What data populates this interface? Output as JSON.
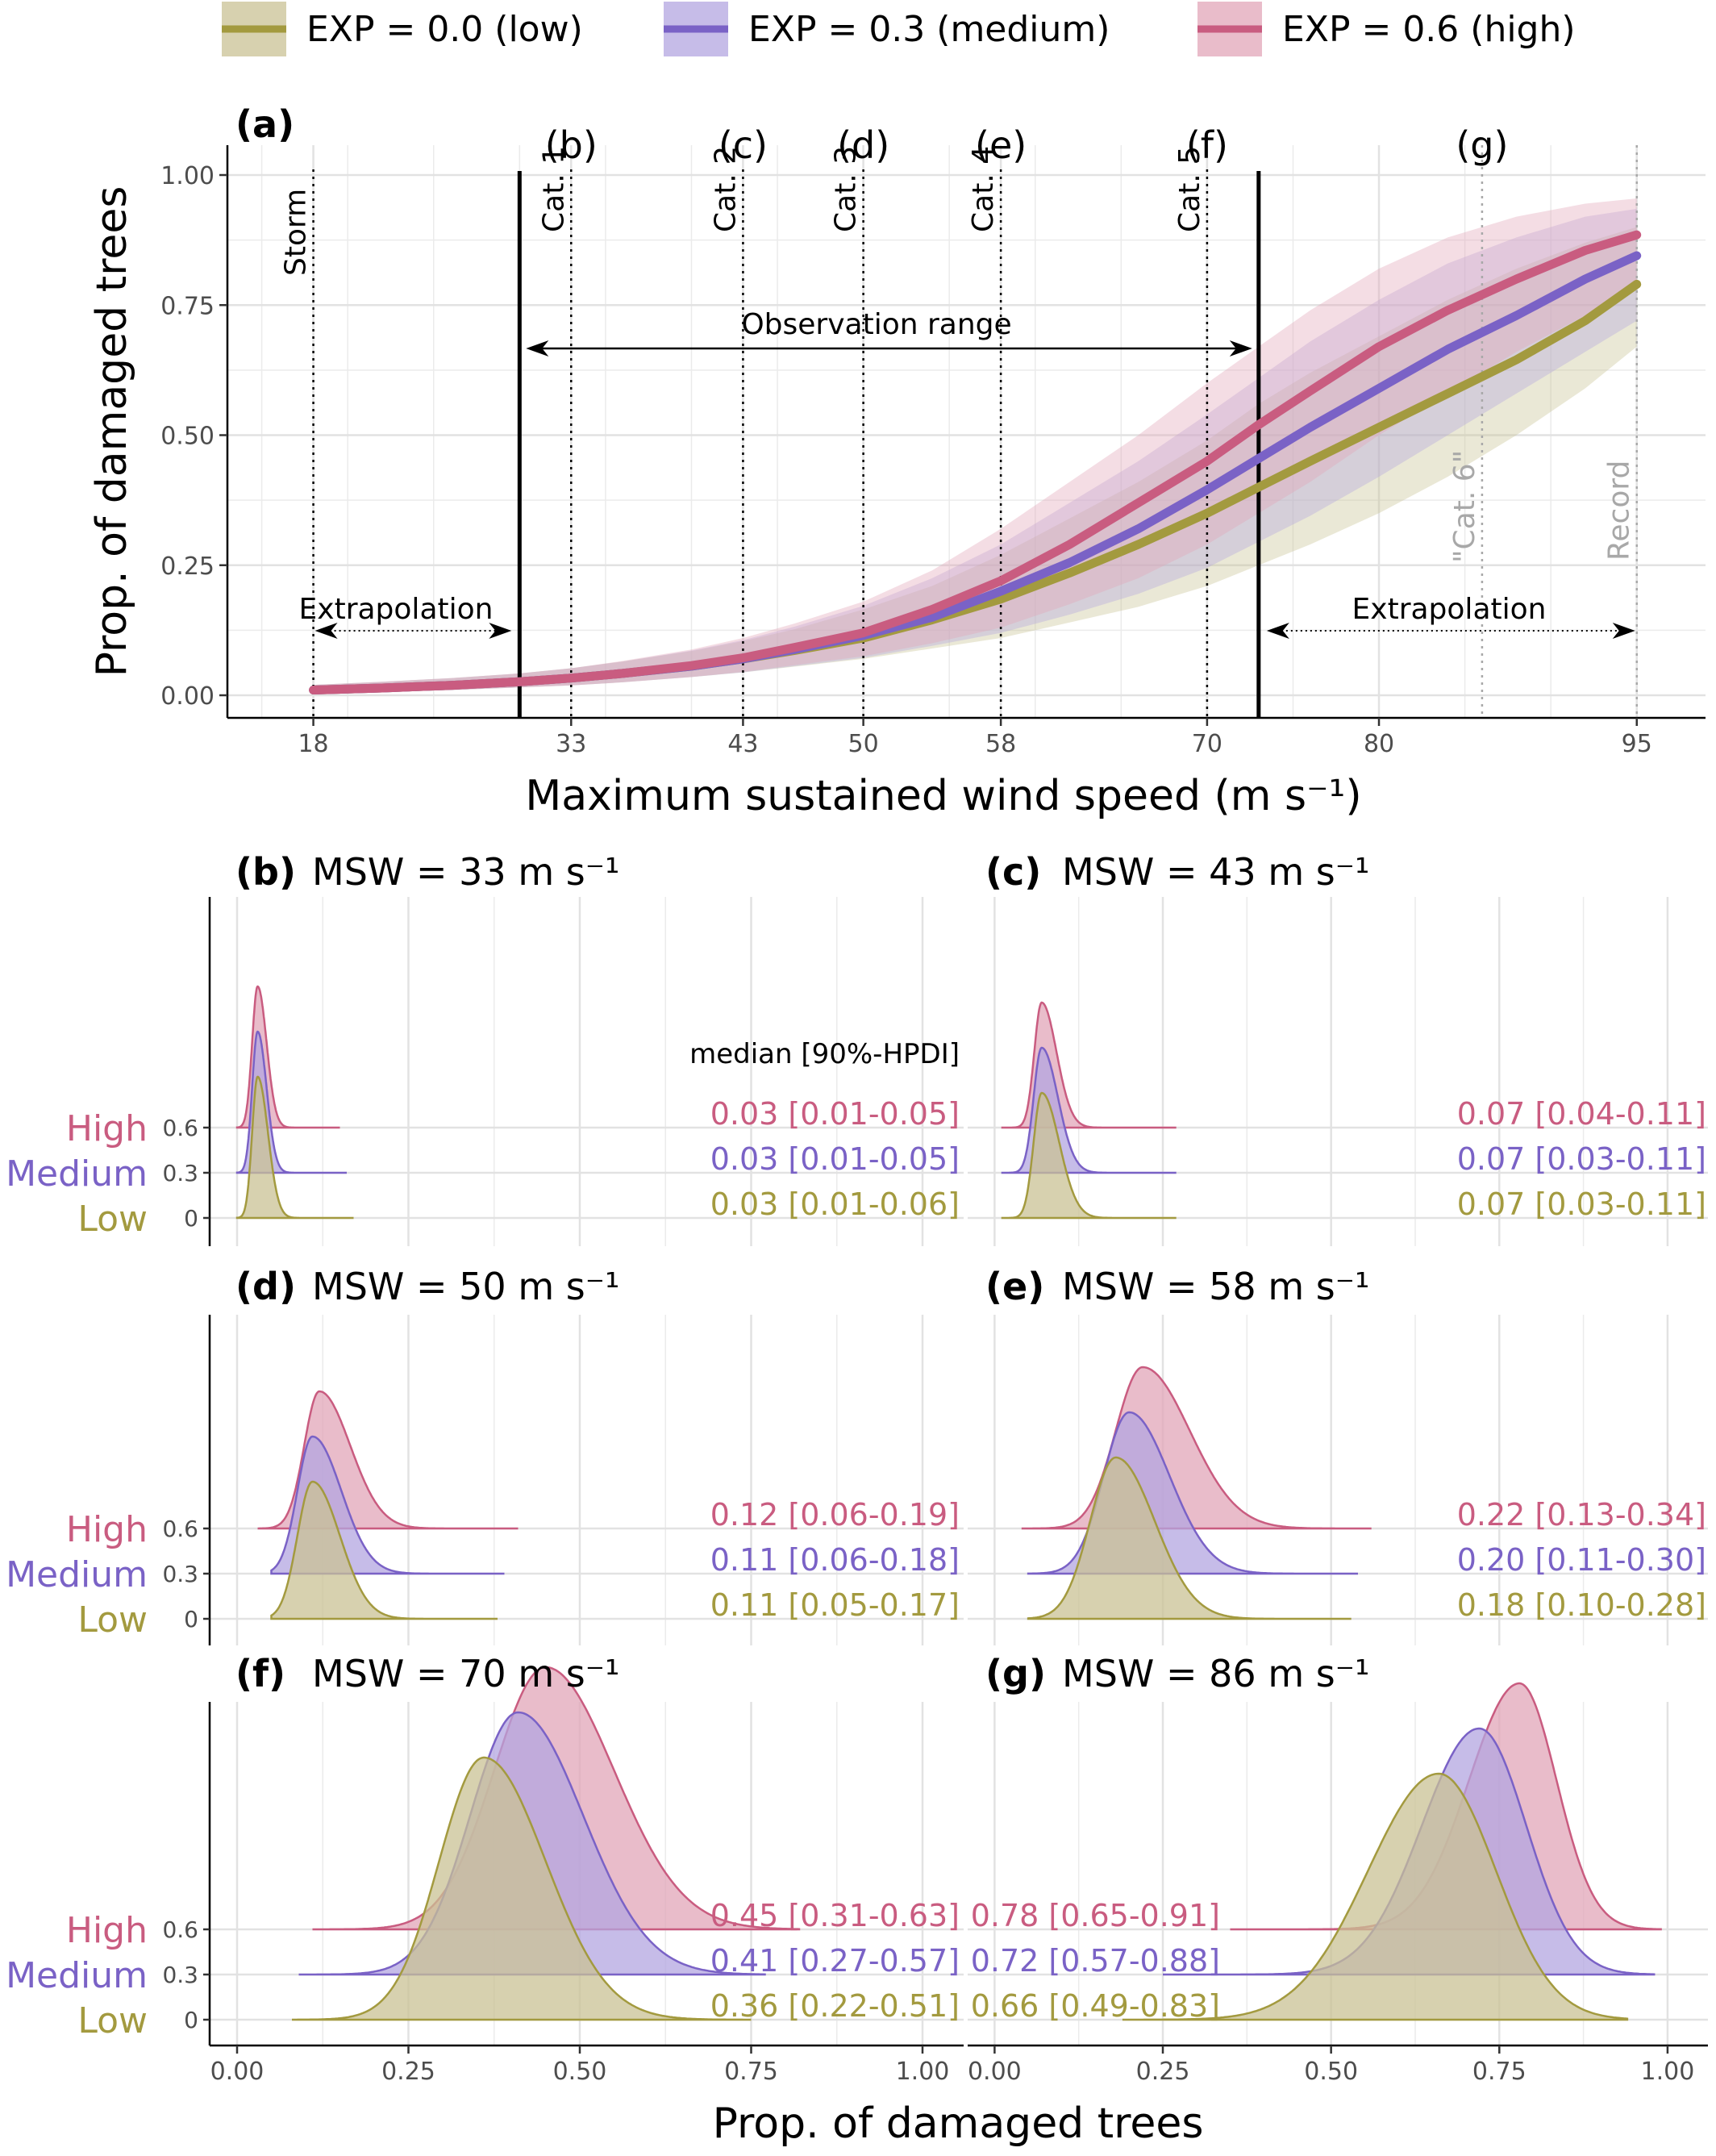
{
  "colors": {
    "low": "#a39a3f",
    "low_fill": "#c9c294",
    "medium": "#7a62c6",
    "medium_fill": "#b3a6e0",
    "high": "#c95c80",
    "high_fill": "#e2a6b8",
    "ref_gray": "#a8a8a8",
    "grid": "#ebebeb"
  },
  "legend": {
    "items": [
      {
        "key": "low",
        "label": "EXP = 0.0 (low)"
      },
      {
        "key": "medium",
        "label": "EXP = 0.3 (medium)"
      },
      {
        "key": "high",
        "label": "EXP = 0.6 (high)"
      }
    ]
  },
  "chart_data": [
    {
      "type": "line",
      "panel_label": "(a)",
      "xlabel": "Maximum sustained wind speed (m s⁻¹)",
      "ylabel": "Prop. of damaged trees",
      "xlim": [
        13,
        99
      ],
      "ylim": [
        0,
        1
      ],
      "xticks": [
        18,
        33,
        43,
        50,
        58,
        70,
        80,
        95
      ],
      "yticks": [
        0.0,
        0.25,
        0.5,
        0.75,
        1.0
      ],
      "ytick_labels": [
        "0.00",
        "0.25",
        "0.50",
        "0.75",
        "1.00"
      ],
      "x": [
        18,
        22,
        26,
        30,
        33,
        36,
        40,
        43,
        46,
        50,
        54,
        58,
        62,
        66,
        70,
        73,
        76,
        80,
        84,
        88,
        92,
        95
      ],
      "series": [
        {
          "key": "low",
          "name": "EXP = 0.0 (low)",
          "values": [
            0.01,
            0.014,
            0.019,
            0.026,
            0.033,
            0.042,
            0.056,
            0.07,
            0.086,
            0.11,
            0.145,
            0.185,
            0.235,
            0.29,
            0.35,
            0.4,
            0.45,
            0.515,
            0.58,
            0.645,
            0.72,
            0.79
          ],
          "lower": [
            0.004,
            0.007,
            0.01,
            0.015,
            0.019,
            0.025,
            0.035,
            0.044,
            0.055,
            0.07,
            0.09,
            0.11,
            0.14,
            0.17,
            0.21,
            0.25,
            0.29,
            0.35,
            0.42,
            0.5,
            0.59,
            0.67
          ],
          "upper": [
            0.02,
            0.026,
            0.033,
            0.042,
            0.052,
            0.065,
            0.085,
            0.104,
            0.127,
            0.165,
            0.21,
            0.27,
            0.34,
            0.41,
            0.49,
            0.56,
            0.62,
            0.69,
            0.76,
            0.82,
            0.87,
            0.9
          ]
        },
        {
          "key": "medium",
          "name": "EXP = 0.3 (medium)",
          "values": [
            0.01,
            0.014,
            0.019,
            0.026,
            0.033,
            0.042,
            0.056,
            0.07,
            0.088,
            0.115,
            0.15,
            0.2,
            0.255,
            0.32,
            0.395,
            0.455,
            0.515,
            0.59,
            0.665,
            0.73,
            0.8,
            0.845
          ],
          "lower": [
            0.004,
            0.007,
            0.01,
            0.015,
            0.019,
            0.025,
            0.035,
            0.044,
            0.056,
            0.072,
            0.095,
            0.12,
            0.155,
            0.195,
            0.245,
            0.295,
            0.345,
            0.42,
            0.5,
            0.58,
            0.66,
            0.72
          ],
          "upper": [
            0.02,
            0.026,
            0.033,
            0.042,
            0.052,
            0.065,
            0.086,
            0.106,
            0.132,
            0.172,
            0.225,
            0.29,
            0.37,
            0.45,
            0.54,
            0.61,
            0.68,
            0.76,
            0.83,
            0.88,
            0.92,
            0.935
          ]
        },
        {
          "key": "high",
          "name": "EXP = 0.6 (high)",
          "values": [
            0.01,
            0.014,
            0.019,
            0.026,
            0.033,
            0.042,
            0.057,
            0.072,
            0.092,
            0.12,
            0.165,
            0.22,
            0.29,
            0.37,
            0.45,
            0.52,
            0.585,
            0.67,
            0.74,
            0.8,
            0.855,
            0.885
          ],
          "lower": [
            0.004,
            0.007,
            0.01,
            0.015,
            0.019,
            0.025,
            0.035,
            0.045,
            0.058,
            0.075,
            0.1,
            0.13,
            0.175,
            0.225,
            0.29,
            0.35,
            0.41,
            0.5,
            0.58,
            0.66,
            0.73,
            0.78
          ],
          "upper": [
            0.02,
            0.026,
            0.033,
            0.042,
            0.052,
            0.066,
            0.088,
            0.11,
            0.138,
            0.18,
            0.24,
            0.32,
            0.41,
            0.5,
            0.6,
            0.67,
            0.74,
            0.82,
            0.88,
            0.92,
            0.945,
            0.955
          ]
        }
      ],
      "vlines_dotted": [
        {
          "x": 18,
          "label": "Storm"
        },
        {
          "x": 33,
          "label": "Cat. 1"
        },
        {
          "x": 43,
          "label": "Cat. 2"
        },
        {
          "x": 50,
          "label": "Cat. 3"
        },
        {
          "x": 58,
          "label": "Cat. 4"
        },
        {
          "x": 70,
          "label": "Cat. 5"
        }
      ],
      "vlines_gray": [
        {
          "x": 86,
          "label": "\"Cat. 6\""
        },
        {
          "x": 95,
          "label": "Record"
        }
      ],
      "vlines_solid": [
        30,
        73
      ],
      "subpanel_markers": [
        {
          "x": 33,
          "label": "(b)"
        },
        {
          "x": 43,
          "label": "(c)"
        },
        {
          "x": 50,
          "label": "(d)"
        },
        {
          "x": 58,
          "label": "(e)"
        },
        {
          "x": 70,
          "label": "(f)"
        },
        {
          "x": 86,
          "label": "(g)"
        }
      ],
      "annotations": [
        {
          "text": "Observation range",
          "x_from": 30,
          "x_to": 73,
          "y": 0.66
        },
        {
          "text": "Extrapolation",
          "x_from": 18,
          "x_to": 30,
          "y": 0.125
        },
        {
          "text": "Extrapolation",
          "x_from": 73,
          "x_to": 95,
          "y": 0.125
        }
      ]
    },
    {
      "type": "area",
      "panel_label": "(b)",
      "title": "MSW = 33 m s⁻¹",
      "xlabel": "Prop. of damaged trees",
      "xlim": [
        -0.04,
        1.06
      ],
      "xticks": [
        0.0,
        0.25,
        0.5,
        0.75,
        1.0
      ],
      "xtick_labels": [
        "0.00",
        "0.25",
        "0.50",
        "0.75",
        "1.00"
      ],
      "row_labels": [
        {
          "key": "high",
          "text": "High",
          "tick": "0.6"
        },
        {
          "key": "medium",
          "text": "Medium",
          "tick": "0.3"
        },
        {
          "key": "low",
          "text": "Low",
          "tick": "0"
        }
      ],
      "summary_header": "median [90%-HPDI]",
      "series": [
        {
          "key": "high",
          "median": 0.03,
          "summary": "0.03 [0.01-0.05]",
          "sd_lo": 0.008,
          "sd_hi": 0.013,
          "range": [
            0.0,
            0.15
          ]
        },
        {
          "key": "medium",
          "median": 0.03,
          "summary": "0.03 [0.01-0.05]",
          "sd_lo": 0.008,
          "sd_hi": 0.013,
          "range": [
            0.0,
            0.16
          ]
        },
        {
          "key": "low",
          "median": 0.03,
          "summary": "0.03 [0.01-0.06]",
          "sd_lo": 0.008,
          "sd_hi": 0.015,
          "range": [
            0.0,
            0.17
          ]
        }
      ]
    },
    {
      "type": "area",
      "panel_label": "(c)",
      "title": "MSW = 43 m s⁻¹",
      "xlim": [
        -0.04,
        1.06
      ],
      "xticks": [
        0.0,
        0.25,
        0.5,
        0.75,
        1.0
      ],
      "row_labels": [
        {
          "key": "high",
          "tick": "0.6"
        },
        {
          "key": "medium",
          "tick": "0.3"
        },
        {
          "key": "low",
          "tick": "0"
        }
      ],
      "series": [
        {
          "key": "high",
          "median": 0.07,
          "summary": "0.07 [0.04-0.11]",
          "sd_lo": 0.011,
          "sd_hi": 0.022,
          "range": [
            0.01,
            0.27
          ]
        },
        {
          "key": "medium",
          "median": 0.07,
          "summary": "0.07 [0.03-0.11]",
          "sd_lo": 0.012,
          "sd_hi": 0.024,
          "range": [
            0.01,
            0.27
          ]
        },
        {
          "key": "low",
          "median": 0.07,
          "summary": "0.07 [0.03-0.11]",
          "sd_lo": 0.012,
          "sd_hi": 0.026,
          "range": [
            0.01,
            0.27
          ]
        }
      ]
    },
    {
      "type": "area",
      "panel_label": "(d)",
      "title": "MSW = 50 m s⁻¹",
      "xlim": [
        -0.04,
        1.06
      ],
      "xticks": [
        0.0,
        0.25,
        0.5,
        0.75,
        1.0
      ],
      "row_labels": [
        {
          "key": "high",
          "text": "High",
          "tick": "0.6"
        },
        {
          "key": "medium",
          "text": "Medium",
          "tick": "0.3"
        },
        {
          "key": "low",
          "text": "Low",
          "tick": "0"
        }
      ],
      "series": [
        {
          "key": "high",
          "median": 0.12,
          "summary": "0.12 [0.06-0.19]",
          "sd_lo": 0.022,
          "sd_hi": 0.045,
          "range": [
            0.03,
            0.41
          ]
        },
        {
          "key": "medium",
          "median": 0.11,
          "summary": "0.11 [0.06-0.18]",
          "sd_lo": 0.022,
          "sd_hi": 0.042,
          "range": [
            0.05,
            0.39
          ]
        },
        {
          "key": "low",
          "median": 0.11,
          "summary": "0.11 [0.05-0.17]",
          "sd_lo": 0.022,
          "sd_hi": 0.04,
          "range": [
            0.05,
            0.38
          ]
        }
      ]
    },
    {
      "type": "area",
      "panel_label": "(e)",
      "title": "MSW = 58 m s⁻¹",
      "xlim": [
        -0.04,
        1.06
      ],
      "xticks": [
        0.0,
        0.25,
        0.5,
        0.75,
        1.0
      ],
      "row_labels": [
        {
          "key": "high",
          "tick": "0.6"
        },
        {
          "key": "medium",
          "tick": "0.3"
        },
        {
          "key": "low",
          "tick": "0"
        }
      ],
      "series": [
        {
          "key": "high",
          "median": 0.22,
          "summary": "0.22 [0.13-0.34]",
          "sd_lo": 0.04,
          "sd_hi": 0.07,
          "range": [
            0.04,
            0.56
          ]
        },
        {
          "key": "medium",
          "median": 0.2,
          "summary": "0.20 [0.11-0.30]",
          "sd_lo": 0.038,
          "sd_hi": 0.06,
          "range": [
            0.05,
            0.54
          ]
        },
        {
          "key": "low",
          "median": 0.18,
          "summary": "0.18 [0.10-0.28]",
          "sd_lo": 0.038,
          "sd_hi": 0.058,
          "range": [
            0.05,
            0.53
          ]
        }
      ]
    },
    {
      "type": "area",
      "panel_label": "(f)",
      "title": "MSW = 70 m s⁻¹",
      "xlim": [
        -0.04,
        1.06
      ],
      "xticks": [
        0.0,
        0.25,
        0.5,
        0.75,
        1.0
      ],
      "xtick_labels": [
        "0.00",
        "0.25",
        "0.50",
        "0.75",
        "1.00"
      ],
      "row_labels": [
        {
          "key": "high",
          "text": "High",
          "tick": "0.6"
        },
        {
          "key": "medium",
          "text": "Medium",
          "tick": "0.3"
        },
        {
          "key": "low",
          "text": "Low",
          "tick": "0"
        }
      ],
      "series": [
        {
          "key": "high",
          "median": 0.45,
          "summary": "0.45 [0.31-0.63]",
          "sd_lo": 0.075,
          "sd_hi": 0.1,
          "range": [
            0.11,
            0.82
          ]
        },
        {
          "key": "medium",
          "median": 0.41,
          "summary": "0.41 [0.27-0.57]",
          "sd_lo": 0.07,
          "sd_hi": 0.095,
          "range": [
            0.09,
            0.77
          ]
        },
        {
          "key": "low",
          "median": 0.36,
          "summary": "0.36 [0.22-0.51]",
          "sd_lo": 0.065,
          "sd_hi": 0.09,
          "range": [
            0.08,
            0.75
          ]
        }
      ]
    },
    {
      "type": "area",
      "panel_label": "(g)",
      "title": "MSW = 86 m s⁻¹",
      "xlim": [
        -0.04,
        1.06
      ],
      "xticks": [
        0.0,
        0.25,
        0.5,
        0.75,
        1.0
      ],
      "xtick_labels": [
        "0.00",
        "0.25",
        "0.50",
        "0.75",
        "1.00"
      ],
      "row_labels": [
        {
          "key": "high",
          "tick": "0.6"
        },
        {
          "key": "medium",
          "tick": "0.3"
        },
        {
          "key": "low",
          "tick": "0"
        }
      ],
      "series": [
        {
          "key": "high",
          "median": 0.78,
          "summary": "0.78 [0.65-0.91]",
          "sd_lo": 0.075,
          "sd_hi": 0.055,
          "range": [
            0.35,
            0.99
          ]
        },
        {
          "key": "medium",
          "median": 0.72,
          "summary": "0.72 [0.57-0.88]",
          "sd_lo": 0.085,
          "sd_hi": 0.07,
          "range": [
            0.25,
            0.98
          ]
        },
        {
          "key": "low",
          "median": 0.66,
          "summary": "0.66 [0.49-0.83]",
          "sd_lo": 0.105,
          "sd_hi": 0.085,
          "range": [
            0.19,
            0.94
          ]
        }
      ]
    }
  ]
}
